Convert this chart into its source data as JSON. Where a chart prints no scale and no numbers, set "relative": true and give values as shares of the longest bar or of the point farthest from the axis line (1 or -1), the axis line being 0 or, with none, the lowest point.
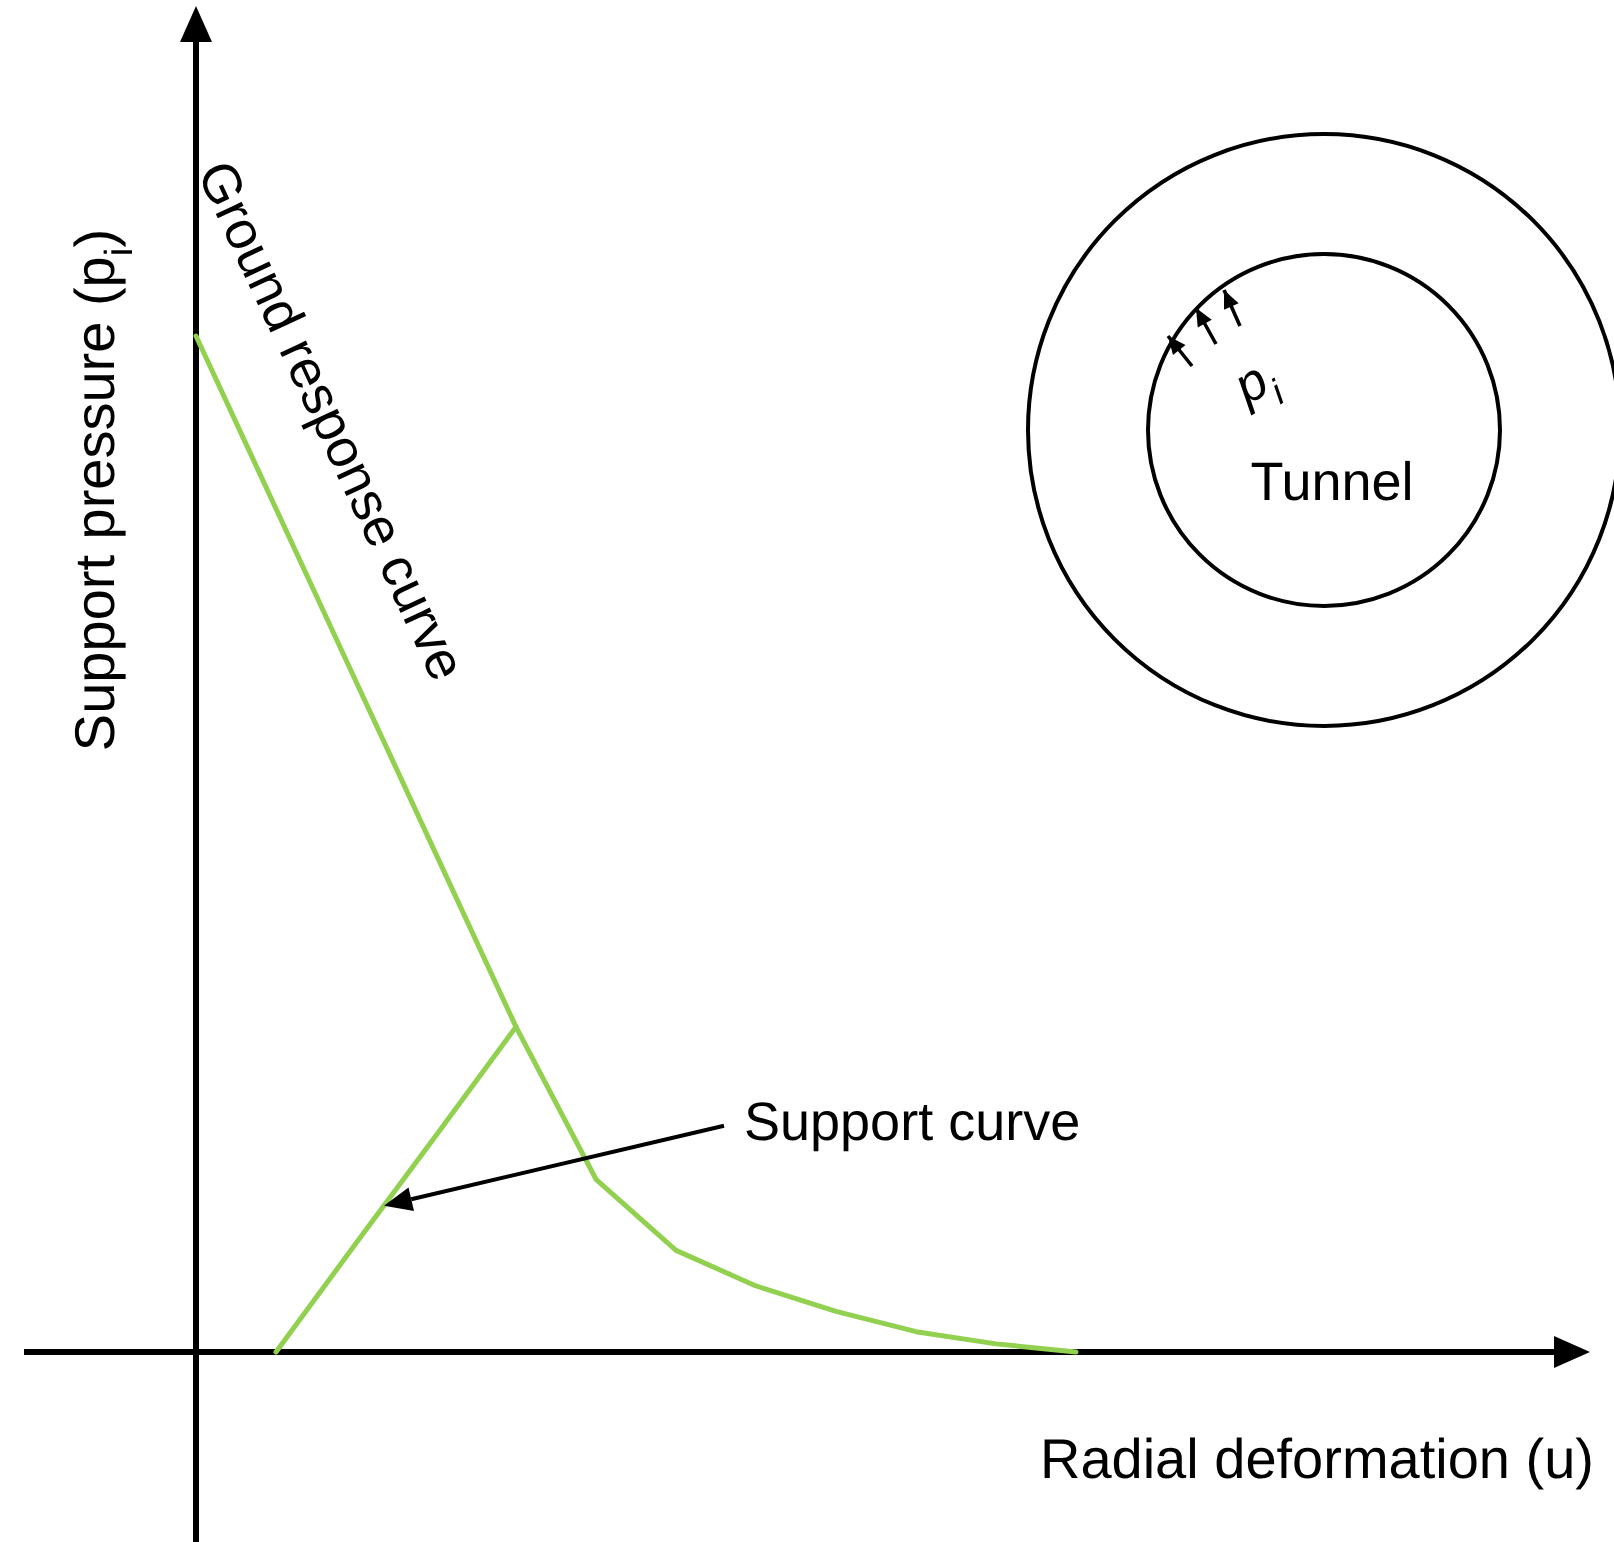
{
  "chart_data": {
    "type": "line",
    "relative": true,
    "xlabel": "Radial deformation (u)",
    "ylabel": "Support pressure (p$_{i}$)",
    "annotations": [
      "p$_{i}$",
      "Tunnel"
    ],
    "categories": [
      null,
      null,
      null,
      null,
      null,
      null,
      null,
      null,
      null,
      null,
      null,
      null
    ],
    "series": [
      {
        "name": "Ground response curve",
        "color": "#92d050",
        "values": [
          1,
          0.83,
          0.66,
          0.49,
          0.32,
          0.17,
          0.1,
          0.065,
          0.04,
          0.02,
          0.008,
          0
        ]
      },
      {
        "name": "Support curve",
        "color": "#92d050",
        "values": [
          null,
          0,
          0.107,
          0.213,
          0.32,
          null,
          null,
          null,
          null,
          null,
          null,
          null
        ]
      }
    ]
  }
}
